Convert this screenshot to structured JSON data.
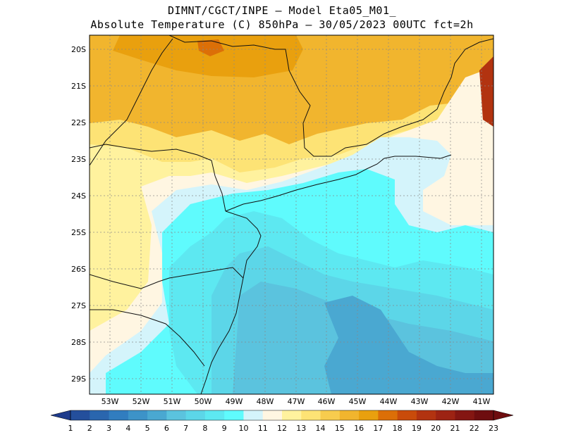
{
  "header": {
    "title_line1": "DIMNT/CGCT/INPE –  Model Eta05_M01_",
    "title_line2": "Absolute Temperature (C) 850hPa –  30/05/2023 00UTC fct=2h"
  },
  "map": {
    "lat_labels": [
      "20S",
      "21S",
      "22S",
      "23S",
      "24S",
      "25S",
      "26S",
      "27S",
      "28S",
      "29S"
    ],
    "lon_labels": [
      "53W",
      "52W",
      "51W",
      "50W",
      "49W",
      "48W",
      "47W",
      "46W",
      "45W",
      "44W",
      "43W",
      "42W",
      "41W"
    ],
    "field": "Absolute Temperature (C) 850hPa",
    "dominant_range": "7 to 16"
  },
  "colorbar": {
    "labels": [
      "1",
      "2",
      "3",
      "4",
      "5",
      "6",
      "7",
      "8",
      "9",
      "10",
      "11",
      "12",
      "13",
      "14",
      "15",
      "16",
      "17",
      "18",
      "19",
      "20",
      "21",
      "22",
      "23"
    ],
    "colors": [
      "#1e3b8c",
      "#244f9c",
      "#2a66ae",
      "#317dbf",
      "#3d93c8",
      "#4aa8d1",
      "#5bc3de",
      "#5cd6e8",
      "#5de8f1",
      "#5ffbfd",
      "#d4f4fb",
      "#fff6e2",
      "#fff29e",
      "#fde375",
      "#f7cc4e",
      "#f1b52e",
      "#e9a00e",
      "#dc6f07",
      "#c94b0a",
      "#b23310",
      "#9d2313",
      "#841612",
      "#6e0d0f"
    ]
  }
}
